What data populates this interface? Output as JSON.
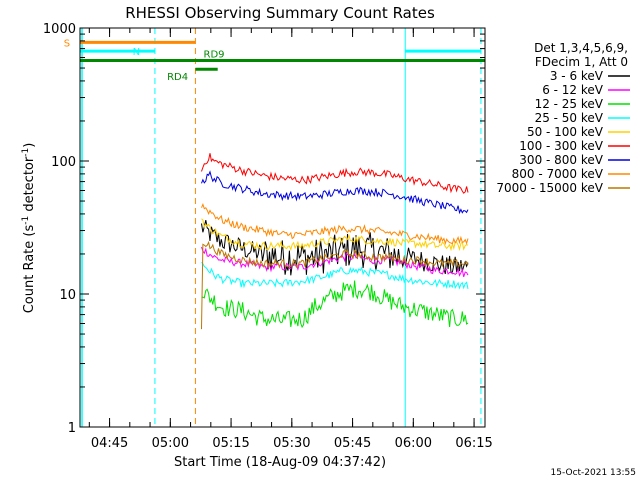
{
  "chart_data": {
    "type": "line",
    "title": "RHESSI Observing Summary Count Rates",
    "xlabel": "Start Time (18-Aug-09 04:37:42)",
    "ylabel_main": "Count Rate (s",
    "ylabel_sup1": "-1",
    "ylabel_mid": " detector",
    "ylabel_sup2": "-1",
    "ylabel_end": ")",
    "y_scale": "log",
    "ylim": [
      1,
      1000
    ],
    "xlim_minutes": [
      0,
      100
    ],
    "x_tick_labels": [
      "04:45",
      "05:00",
      "05:15",
      "05:30",
      "05:45",
      "06:00",
      "06:15"
    ],
    "x_tick_minutes": [
      7.3,
      22.3,
      37.3,
      52.3,
      67.3,
      82.3,
      97.3
    ],
    "y_tick_labels": [
      "1",
      "10",
      "100",
      "1000"
    ],
    "y_tick_values": [
      1,
      10,
      100,
      1000
    ],
    "legend_title_1": "Det 1,3,4,5,6,9,",
    "legend_title_2": "FDecim 1, Att 0",
    "legend_placement": "right",
    "series": [
      {
        "name": "3 - 6 keV",
        "color": "#000000",
        "points": [
          [
            30,
            32
          ],
          [
            31,
            30
          ],
          [
            33,
            27
          ],
          [
            35,
            25
          ],
          [
            40,
            22
          ],
          [
            45,
            20
          ],
          [
            50,
            19
          ],
          [
            55,
            19
          ],
          [
            58,
            19
          ],
          [
            62,
            20
          ],
          [
            65,
            21
          ],
          [
            68,
            22
          ],
          [
            72,
            21
          ],
          [
            76,
            20
          ],
          [
            80,
            19
          ],
          [
            84,
            18
          ],
          [
            88,
            17
          ],
          [
            92,
            16
          ],
          [
            96,
            16
          ]
        ]
      },
      {
        "name": "6 - 12 keV",
        "color": "#ff00ff",
        "points": [
          [
            30,
            22
          ],
          [
            31,
            21
          ],
          [
            33,
            19
          ],
          [
            35,
            18
          ],
          [
            40,
            17
          ],
          [
            45,
            16
          ],
          [
            50,
            16
          ],
          [
            55,
            16
          ],
          [
            58,
            17
          ],
          [
            62,
            18
          ],
          [
            65,
            19
          ],
          [
            68,
            19
          ],
          [
            72,
            18
          ],
          [
            76,
            18
          ],
          [
            80,
            17
          ],
          [
            84,
            16
          ],
          [
            88,
            15
          ],
          [
            92,
            15
          ],
          [
            96,
            14
          ]
        ]
      },
      {
        "name": "12 - 25 keV",
        "color": "#00e000",
        "points": [
          [
            30,
            11
          ],
          [
            31,
            10
          ],
          [
            33,
            9
          ],
          [
            35,
            8
          ],
          [
            40,
            7.5
          ],
          [
            45,
            6.5
          ],
          [
            50,
            6.3
          ],
          [
            55,
            6.5
          ],
          [
            58,
            8
          ],
          [
            62,
            9.5
          ],
          [
            65,
            10.5
          ],
          [
            68,
            11
          ],
          [
            72,
            10.5
          ],
          [
            76,
            9
          ],
          [
            80,
            8
          ],
          [
            84,
            7.5
          ],
          [
            88,
            7
          ],
          [
            92,
            6.5
          ],
          [
            96,
            6.5
          ]
        ]
      },
      {
        "name": "25 - 50 keV",
        "color": "#00ffff",
        "points": [
          [
            30,
            17
          ],
          [
            31,
            16
          ],
          [
            33,
            14
          ],
          [
            35,
            13
          ],
          [
            40,
            12
          ],
          [
            45,
            12
          ],
          [
            50,
            12
          ],
          [
            55,
            12.5
          ],
          [
            58,
            13
          ],
          [
            62,
            14
          ],
          [
            65,
            15
          ],
          [
            68,
            15
          ],
          [
            72,
            14.5
          ],
          [
            76,
            14
          ],
          [
            80,
            13
          ],
          [
            84,
            12.5
          ],
          [
            88,
            12
          ],
          [
            92,
            12
          ],
          [
            96,
            11.5
          ]
        ]
      },
      {
        "name": "50 - 100 keV",
        "color": "#ffd000",
        "points": [
          [
            30,
            37
          ],
          [
            31,
            33
          ],
          [
            33,
            30
          ],
          [
            35,
            27
          ],
          [
            40,
            24
          ],
          [
            45,
            23
          ],
          [
            50,
            23
          ],
          [
            55,
            23
          ],
          [
            58,
            24
          ],
          [
            62,
            25
          ],
          [
            65,
            26
          ],
          [
            68,
            26
          ],
          [
            72,
            25
          ],
          [
            76,
            25
          ],
          [
            80,
            24
          ],
          [
            84,
            24
          ],
          [
            88,
            23
          ],
          [
            92,
            23
          ],
          [
            96,
            23
          ]
        ]
      },
      {
        "name": "100 - 300 keV",
        "color": "#ff0000",
        "points": [
          [
            30,
            85
          ],
          [
            31,
            100
          ],
          [
            32,
            108
          ],
          [
            33,
            100
          ],
          [
            35,
            95
          ],
          [
            40,
            85
          ],
          [
            45,
            78
          ],
          [
            50,
            74
          ],
          [
            55,
            72
          ],
          [
            58,
            74
          ],
          [
            62,
            78
          ],
          [
            65,
            81
          ],
          [
            68,
            83
          ],
          [
            72,
            82
          ],
          [
            76,
            79
          ],
          [
            80,
            74
          ],
          [
            84,
            70
          ],
          [
            88,
            66
          ],
          [
            92,
            62
          ],
          [
            96,
            60
          ]
        ]
      },
      {
        "name": "300 - 800 keV",
        "color": "#0000dd",
        "points": [
          [
            30,
            72
          ],
          [
            31,
            72
          ],
          [
            32,
            80
          ],
          [
            33,
            74
          ],
          [
            35,
            68
          ],
          [
            40,
            62
          ],
          [
            45,
            57
          ],
          [
            50,
            55
          ],
          [
            55,
            54
          ],
          [
            58,
            55
          ],
          [
            62,
            57
          ],
          [
            65,
            59
          ],
          [
            68,
            60
          ],
          [
            72,
            59
          ],
          [
            76,
            57
          ],
          [
            80,
            54
          ],
          [
            84,
            50
          ],
          [
            88,
            47
          ],
          [
            92,
            44
          ],
          [
            96,
            42
          ]
        ]
      },
      {
        "name": "800 - 7000 keV",
        "color": "#ff8800",
        "points": [
          [
            30,
            47
          ],
          [
            31,
            44
          ],
          [
            33,
            40
          ],
          [
            35,
            36
          ],
          [
            40,
            32
          ],
          [
            45,
            30
          ],
          [
            50,
            28
          ],
          [
            55,
            28
          ],
          [
            58,
            29
          ],
          [
            62,
            30
          ],
          [
            65,
            31
          ],
          [
            68,
            31
          ],
          [
            72,
            30
          ],
          [
            76,
            29
          ],
          [
            80,
            28
          ],
          [
            84,
            27
          ],
          [
            88,
            26
          ],
          [
            92,
            25
          ],
          [
            96,
            25
          ]
        ]
      },
      {
        "name": "7000 - 15000 keV",
        "color": "#bb7700",
        "points": [
          [
            30,
            5.5
          ],
          [
            30.3,
            25
          ],
          [
            31,
            24
          ],
          [
            33,
            22
          ],
          [
            35,
            20
          ],
          [
            40,
            18
          ],
          [
            45,
            17
          ],
          [
            50,
            17
          ],
          [
            55,
            17
          ],
          [
            58,
            18
          ],
          [
            62,
            19
          ],
          [
            65,
            20
          ],
          [
            68,
            20
          ],
          [
            72,
            19
          ],
          [
            76,
            19
          ],
          [
            80,
            18
          ],
          [
            84,
            18
          ],
          [
            88,
            17
          ],
          [
            92,
            17
          ],
          [
            96,
            17
          ]
        ]
      }
    ],
    "flags": [
      {
        "label": "S",
        "color": "#ff8800",
        "y_value": 780,
        "start": 0,
        "end": 28.5,
        "label_min": -4
      },
      {
        "label": "N",
        "color": "#00ffff",
        "y_value": 670,
        "start": 0,
        "end": 18.5,
        "label_min": 13
      },
      {
        "label": "N",
        "color": "#00ffff",
        "y_value": 670,
        "start": 80.3,
        "end": 99,
        "label_min": null
      },
      {
        "label": "RD4",
        "color": "#008800",
        "y_value": 490,
        "start": 28.5,
        "end": 34,
        "label_min": 21.5
      },
      {
        "label": "RD9",
        "color": "#008800",
        "y_value": 570,
        "start": 0,
        "end": 100,
        "label_min": 30.5
      }
    ],
    "vlines": [
      {
        "minute": 18.5,
        "color": "#00ffff",
        "style": "dashed"
      },
      {
        "minute": 28.5,
        "color": "#ff8800",
        "style": "dashed"
      },
      {
        "minute": 80.3,
        "color": "#00ffff",
        "style": "solid"
      },
      {
        "minute": 99,
        "color": "#00ffff",
        "style": "dashed"
      }
    ],
    "left_edge_line": {
      "minute": 0.5,
      "color": "#00ffff"
    },
    "timestamp": "15-Oct-2021 13:55"
  }
}
